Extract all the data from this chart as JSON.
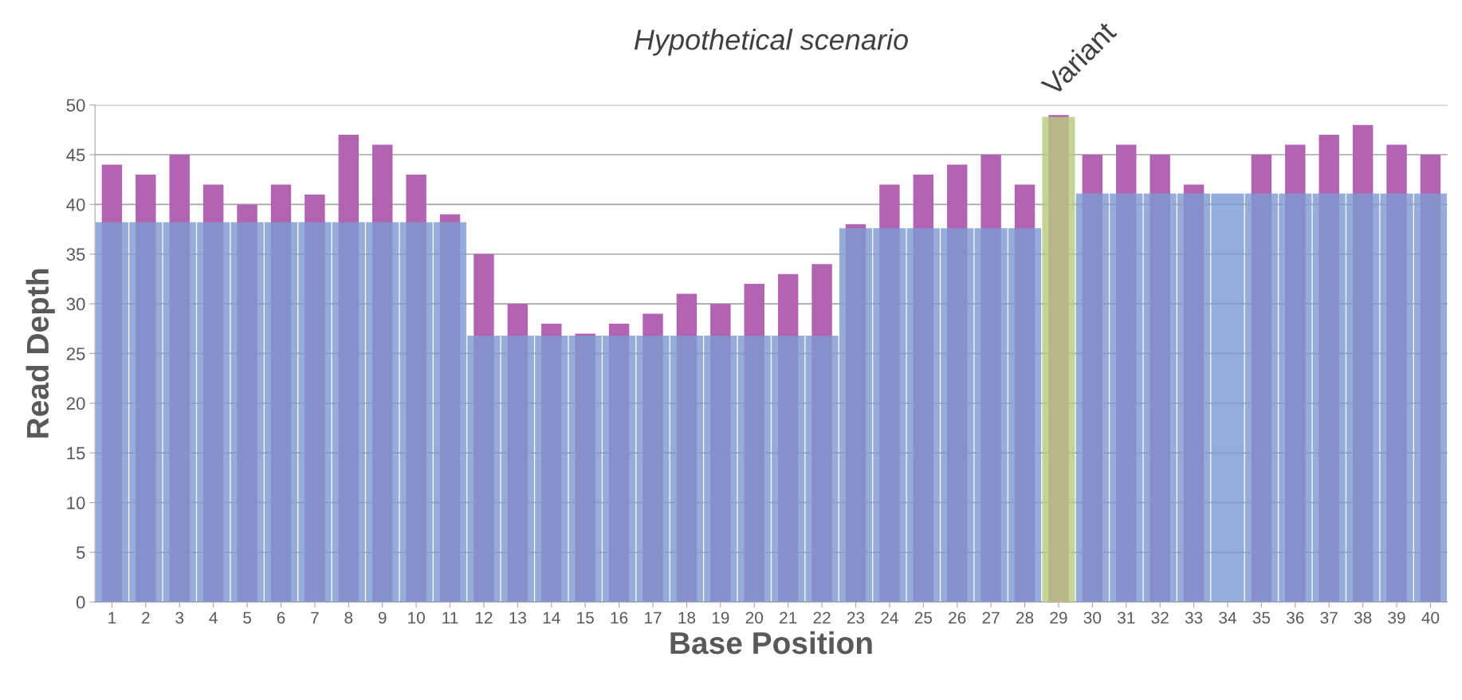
{
  "chart_data": {
    "type": "bar",
    "title": "Hypothetical scenario",
    "xlabel": "Base Position",
    "ylabel": "Read Depth",
    "categories": [
      "1",
      "2",
      "3",
      "4",
      "5",
      "6",
      "7",
      "8",
      "9",
      "10",
      "11",
      "12",
      "13",
      "14",
      "15",
      "16",
      "17",
      "18",
      "19",
      "20",
      "21",
      "22",
      "23",
      "24",
      "25",
      "26",
      "27",
      "28",
      "29",
      "30",
      "31",
      "32",
      "33",
      "34",
      "35",
      "36",
      "37",
      "38",
      "39",
      "40"
    ],
    "series": [
      {
        "color": "#b264b2",
        "values": [
          44,
          43,
          45,
          42,
          40,
          42,
          41,
          47,
          46,
          43,
          39,
          35,
          30,
          28,
          27,
          28,
          29,
          31,
          30,
          32,
          33,
          34,
          38,
          42,
          43,
          44,
          45,
          42,
          49,
          45,
          46,
          45,
          42,
          null,
          45,
          46,
          47,
          48,
          46,
          45
        ]
      },
      {
        "colors": [
          "#7f9ad2",
          "#7f9ad2",
          "#7f9ad2",
          "#7f9ad2",
          "#7f9ad2",
          "#7f9ad2",
          "#7f9ad2",
          "#7f9ad2",
          "#7f9ad2",
          "#7f9ad2",
          "#7f9ad2",
          "#7f9ad2",
          "#7f9ad2",
          "#7f9ad2",
          "#7f9ad2",
          "#7f9ad2",
          "#7f9ad2",
          "#7f9ad2",
          "#7f9ad2",
          "#7f9ad2",
          "#7f9ad2",
          "#7f9ad2",
          "#7f9ad2",
          "#7f9ad2",
          "#7f9ad2",
          "#7f9ad2",
          "#7f9ad2",
          "#7f9ad2",
          "#b8c97e",
          "#7f9ad2",
          "#7f9ad2",
          "#7f9ad2",
          "#7f9ad2",
          "#7f9ad2",
          "#7f9ad2",
          "#7f9ad2",
          "#7f9ad2",
          "#7f9ad2",
          "#7f9ad2",
          "#7f9ad2"
        ],
        "values": [
          38.2,
          38.2,
          38.2,
          38.2,
          38.2,
          38.2,
          38.2,
          38.2,
          38.2,
          38.2,
          38.2,
          26.8,
          26.8,
          26.8,
          26.8,
          26.8,
          26.8,
          26.8,
          26.8,
          26.8,
          26.8,
          26.8,
          37.6,
          37.6,
          37.6,
          37.6,
          37.6,
          37.6,
          48.8,
          41.1,
          41.1,
          41.1,
          41.1,
          41.1,
          41.1,
          41.1,
          41.1,
          41.1,
          41.1,
          41.1
        ]
      }
    ],
    "annotations": [
      {
        "text": "Variant",
        "x": "29",
        "y": 48.8
      }
    ],
    "ylim": [
      0,
      50
    ],
    "yticks": [
      0,
      5,
      10,
      15,
      20,
      25,
      30,
      35,
      40,
      45,
      50
    ],
    "grid": "y"
  }
}
